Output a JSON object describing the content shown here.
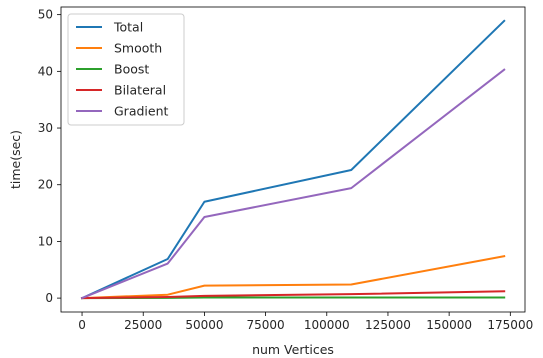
{
  "chart_data": {
    "type": "line",
    "xlabel": "num Vertices",
    "ylabel": "time(sec)",
    "xlim": [
      -8600,
      181000
    ],
    "ylim": [
      -2.45,
      51.35
    ],
    "xticks": [
      0,
      25000,
      50000,
      75000,
      100000,
      125000,
      150000,
      175000
    ],
    "xtick_labels": [
      "0",
      "25000",
      "50000",
      "75000",
      "100000",
      "125000",
      "150000",
      "175000"
    ],
    "yticks": [
      0,
      10,
      20,
      30,
      40,
      50
    ],
    "ytick_labels": [
      "0",
      "10",
      "20",
      "30",
      "40",
      "50"
    ],
    "x": [
      0,
      35000,
      50000,
      110000,
      172500
    ],
    "grid": false,
    "legend_position": "upper-left",
    "series": [
      {
        "name": "Total",
        "color": "#1f77b4",
        "values": [
          0,
          6.9,
          17.0,
          22.6,
          48.9
        ]
      },
      {
        "name": "Smooth",
        "color": "#ff7f0e",
        "values": [
          0,
          0.6,
          2.2,
          2.4,
          7.4
        ]
      },
      {
        "name": "Boost",
        "color": "#2ca02c",
        "values": [
          0,
          0.05,
          0.1,
          0.1,
          0.1
        ]
      },
      {
        "name": "Bilateral",
        "color": "#d62728",
        "values": [
          0,
          0.2,
          0.4,
          0.7,
          1.2
        ]
      },
      {
        "name": "Gradient",
        "color": "#9467bd",
        "values": [
          0,
          6.1,
          14.3,
          19.4,
          40.3
        ]
      }
    ]
  }
}
